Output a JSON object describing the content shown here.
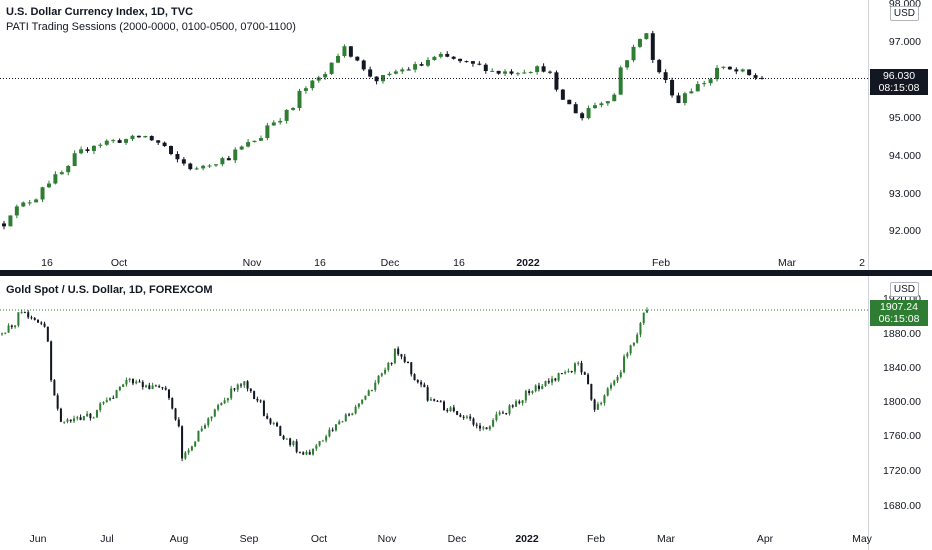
{
  "colors": {
    "up": "#26a69a",
    "up_fill": "#2e7d32",
    "down": "#131722",
    "top_tag": "#131722",
    "bottom_tag": "#2e7d32",
    "dotted_top": "#131722",
    "dotted_bottom": "#2e7d32"
  },
  "top": {
    "title": "U.S. Dollar Currency Index, 1D, TVC",
    "subtitle": "PATI Trading Sessions (2000-0000, 0100-0500, 0700-1100)",
    "unit": "USD",
    "last_price": "96.030",
    "countdown": "08:15:08",
    "y_ticks": [
      "98.000",
      "97.000",
      "96.000",
      "95.000",
      "94.000",
      "93.000",
      "92.000"
    ],
    "x_ticks": [
      {
        "label": "16",
        "bold": false
      },
      {
        "label": "Oct",
        "bold": false
      },
      {
        "label": "Nov",
        "bold": false
      },
      {
        "label": "16",
        "bold": false
      },
      {
        "label": "Dec",
        "bold": false
      },
      {
        "label": "16",
        "bold": false
      },
      {
        "label": "2022",
        "bold": true
      },
      {
        "label": "Feb",
        "bold": false
      },
      {
        "label": "Mar",
        "bold": false
      },
      {
        "label": "2",
        "bold": false
      }
    ]
  },
  "bottom": {
    "title": "Gold Spot / U.S. Dollar, 1D, FOREXCOM",
    "unit": "USD",
    "last_price": "1907.24",
    "countdown": "06:15:08",
    "y_ticks": [
      "1920.00",
      "1880.00",
      "1840.00",
      "1800.00",
      "1760.00",
      "1720.00",
      "1680.00"
    ],
    "x_ticks": [
      {
        "label": "Jun",
        "bold": false
      },
      {
        "label": "Jul",
        "bold": false
      },
      {
        "label": "Aug",
        "bold": false
      },
      {
        "label": "Sep",
        "bold": false
      },
      {
        "label": "Oct",
        "bold": false
      },
      {
        "label": "Nov",
        "bold": false
      },
      {
        "label": "Dec",
        "bold": false
      },
      {
        "label": "2022",
        "bold": true
      },
      {
        "label": "Feb",
        "bold": false
      },
      {
        "label": "Mar",
        "bold": false
      },
      {
        "label": "Apr",
        "bold": false
      },
      {
        "label": "May",
        "bold": false
      }
    ]
  },
  "chart_data": [
    {
      "type": "candlestick",
      "title": "U.S. Dollar Currency Index, 1D, TVC",
      "ylim": [
        91.6,
        98.1
      ],
      "last": 96.03,
      "anchors": [
        {
          "x": "Sep 10, 2021",
          "y": 92.2
        },
        {
          "x": "Sep 20, 2021",
          "y": 93.2
        },
        {
          "x": "Sep 30, 2021",
          "y": 94.3
        },
        {
          "x": "Oct 12, 2021",
          "y": 94.5
        },
        {
          "x": "Oct 22, 2021",
          "y": 93.6
        },
        {
          "x": "Nov 01, 2021",
          "y": 94.1
        },
        {
          "x": "Nov 10, 2021",
          "y": 95.0
        },
        {
          "x": "Nov 24, 2021",
          "y": 96.8
        },
        {
          "x": "Dec 01, 2021",
          "y": 96.0
        },
        {
          "x": "Dec 15, 2021",
          "y": 96.6
        },
        {
          "x": "Dec 28, 2021",
          "y": 96.2
        },
        {
          "x": "Jan 06, 2022",
          "y": 96.3
        },
        {
          "x": "Jan 14, 2022",
          "y": 95.0
        },
        {
          "x": "Jan 21, 2022",
          "y": 95.6
        },
        {
          "x": "Jan 28, 2022",
          "y": 97.3
        },
        {
          "x": "Feb 04, 2022",
          "y": 95.4
        },
        {
          "x": "Feb 14, 2022",
          "y": 96.3
        },
        {
          "x": "Feb 23, 2022",
          "y": 96.03
        }
      ]
    },
    {
      "type": "candlestick",
      "title": "Gold Spot / U.S. Dollar, 1D, FOREXCOM",
      "ylim": [
        1670,
        1925
      ],
      "last": 1907.24,
      "anchors": [
        {
          "x": "May 24, 2021",
          "y": 1880
        },
        {
          "x": "Jun 01, 2021",
          "y": 1905
        },
        {
          "x": "Jun 10, 2021",
          "y": 1890
        },
        {
          "x": "Jun 17, 2021",
          "y": 1775
        },
        {
          "x": "Jul 01, 2021",
          "y": 1785
        },
        {
          "x": "Jul 15, 2021",
          "y": 1825
        },
        {
          "x": "Aug 02, 2021",
          "y": 1815
        },
        {
          "x": "Aug 09, 2021",
          "y": 1735
        },
        {
          "x": "Aug 20, 2021",
          "y": 1785
        },
        {
          "x": "Sep 03, 2021",
          "y": 1825
        },
        {
          "x": "Sep 20, 2021",
          "y": 1760
        },
        {
          "x": "Sep 30, 2021",
          "y": 1740
        },
        {
          "x": "Oct 22, 2021",
          "y": 1795
        },
        {
          "x": "Nov 08, 2021",
          "y": 1860
        },
        {
          "x": "Nov 22, 2021",
          "y": 1805
        },
        {
          "x": "Dec 15, 2021",
          "y": 1770
        },
        {
          "x": "Jan 05, 2022",
          "y": 1815
        },
        {
          "x": "Jan 25, 2022",
          "y": 1845
        },
        {
          "x": "Feb 01, 2022",
          "y": 1795
        },
        {
          "x": "Feb 10, 2022",
          "y": 1830
        },
        {
          "x": "Feb 23, 2022",
          "y": 1907.24
        }
      ]
    }
  ]
}
